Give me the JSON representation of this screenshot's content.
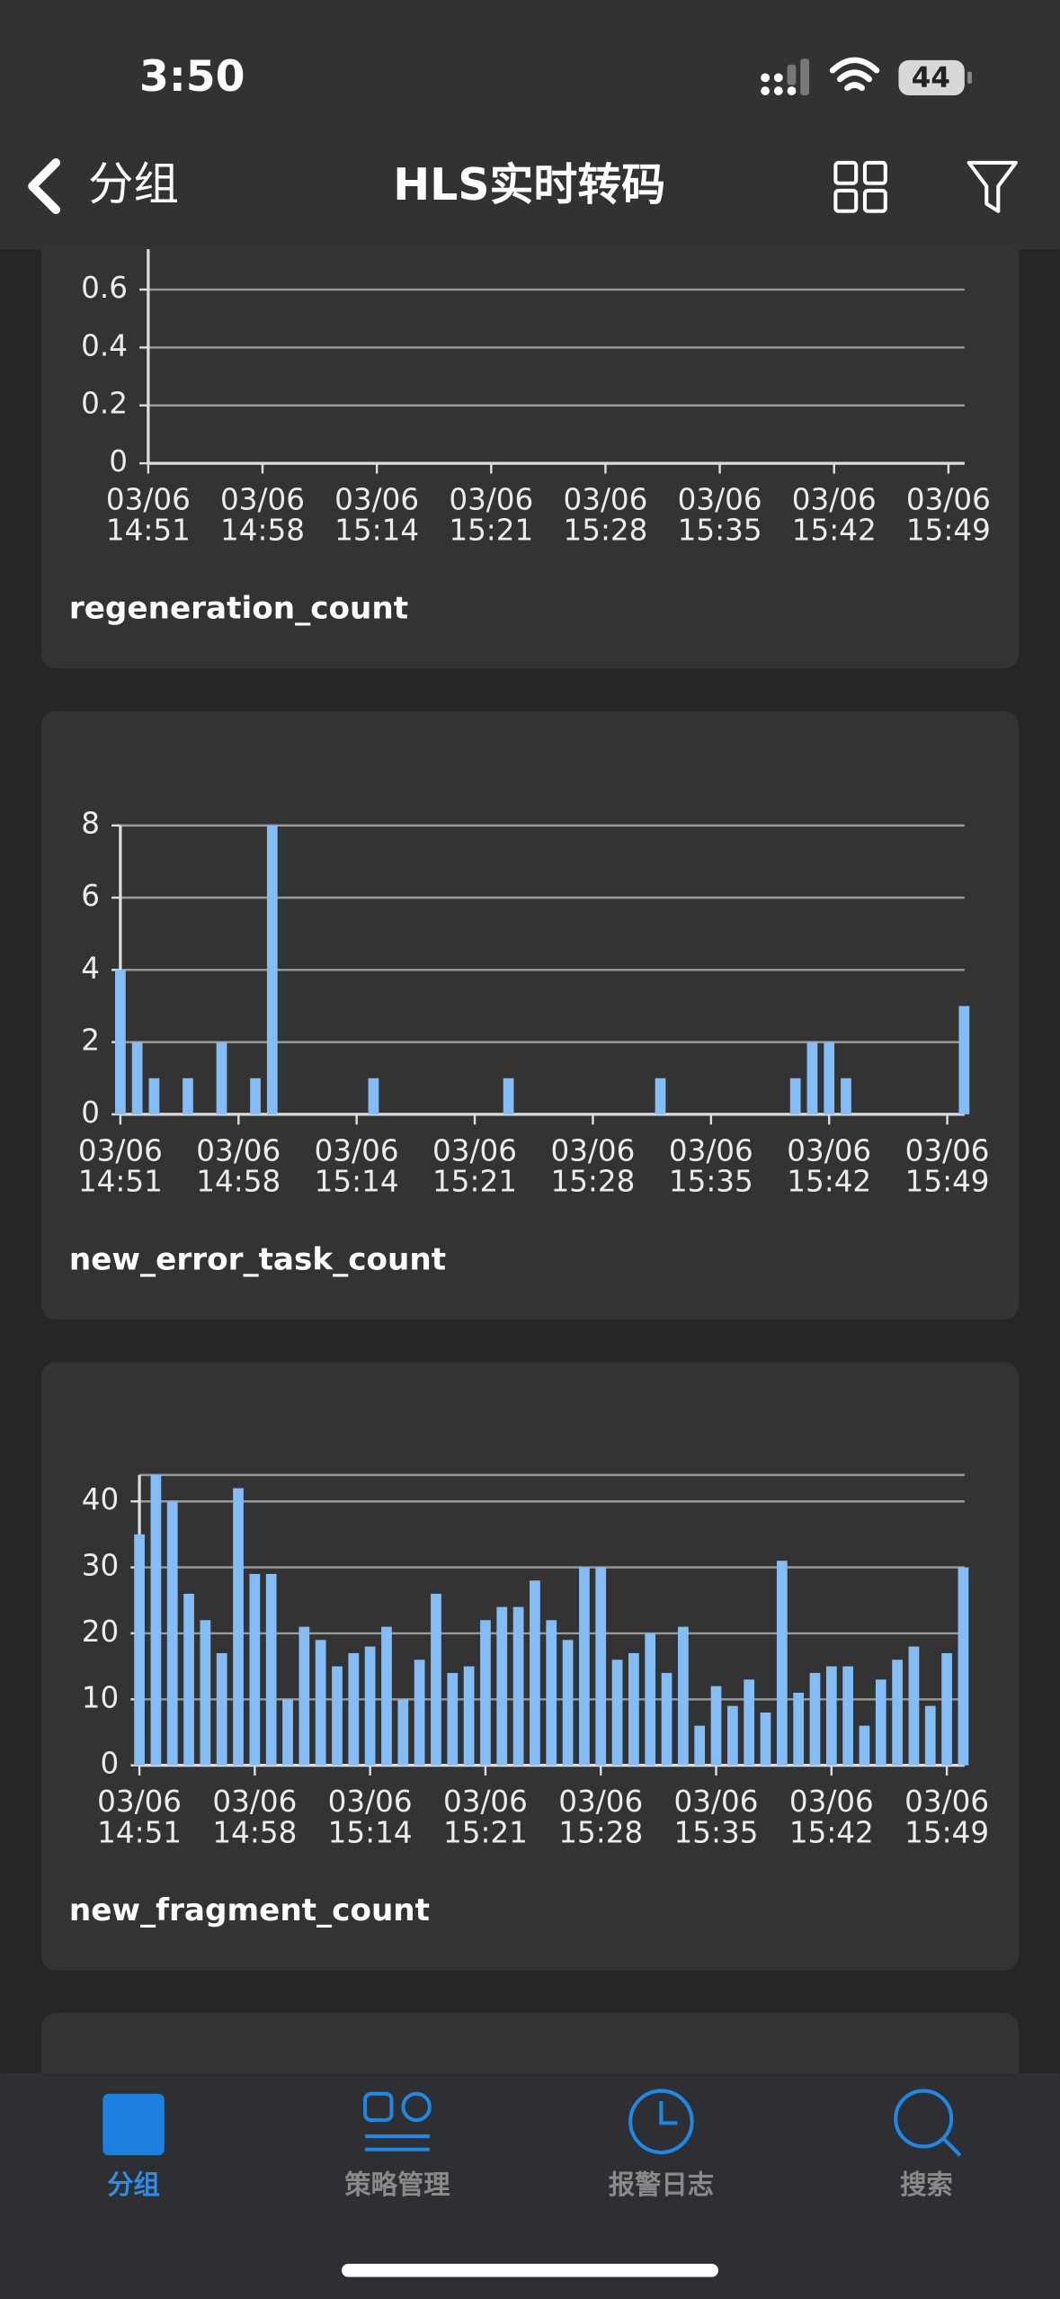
{
  "status": {
    "time": "3:50",
    "battery": "44"
  },
  "nav": {
    "back": "分组",
    "title": "HLS实时转码"
  },
  "chart_data": [
    {
      "type": "bar",
      "title": "regeneration_count",
      "color": "#84bdf5",
      "grid": true,
      "categories": [
        [
          "03/06",
          "14:51"
        ],
        null,
        null,
        null,
        null,
        null,
        null,
        [
          "03/06",
          "14:58"
        ],
        null,
        null,
        null,
        null,
        null,
        null,
        [
          "03/06",
          "15:14"
        ],
        null,
        null,
        null,
        null,
        null,
        null,
        [
          "03/06",
          "15:21"
        ],
        null,
        null,
        null,
        null,
        null,
        null,
        [
          "03/06",
          "15:28"
        ],
        null,
        null,
        null,
        null,
        null,
        null,
        [
          "03/06",
          "15:35"
        ],
        null,
        null,
        null,
        null,
        null,
        null,
        [
          "03/06",
          "15:42"
        ],
        null,
        null,
        null,
        null,
        null,
        null,
        [
          "03/06",
          "15:49"
        ],
        null
      ],
      "ylim": [
        0,
        0.8
      ],
      "yticks": [
        0,
        0.2,
        0.4,
        0.6
      ]
    },
    {
      "type": "bar",
      "title": "new_error_task_count",
      "color": "#84bdf5",
      "grid": true,
      "categories": [
        [
          "03/06",
          "14:51"
        ],
        null,
        null,
        null,
        null,
        null,
        null,
        [
          "03/06",
          "14:58"
        ],
        null,
        null,
        null,
        null,
        null,
        null,
        [
          "03/06",
          "15:14"
        ],
        null,
        null,
        null,
        null,
        null,
        null,
        [
          "03/06",
          "15:21"
        ],
        null,
        null,
        null,
        null,
        null,
        null,
        [
          "03/06",
          "15:28"
        ],
        null,
        null,
        null,
        null,
        null,
        null,
        [
          "03/06",
          "15:35"
        ],
        null,
        null,
        null,
        null,
        null,
        null,
        [
          "03/06",
          "15:42"
        ],
        null,
        null,
        null,
        null,
        null,
        null,
        [
          "03/06",
          "15:49"
        ],
        null
      ],
      "values": [
        4,
        2,
        1,
        0,
        1,
        0,
        2,
        0,
        1,
        8,
        0,
        0,
        0,
        0,
        0,
        1,
        0,
        0,
        0,
        0,
        0,
        0,
        0,
        1,
        0,
        0,
        0,
        0,
        0,
        0,
        0,
        0,
        1,
        0,
        0,
        0,
        0,
        0,
        0,
        0,
        1,
        2,
        2,
        1,
        0,
        0,
        0,
        0,
        0,
        0,
        3
      ],
      "ylim": [
        0,
        8
      ],
      "yticks": [
        0,
        2,
        4,
        6,
        8
      ]
    },
    {
      "type": "bar",
      "title": "new_fragment_count",
      "color": "#84bdf5",
      "grid": true,
      "categories": [
        [
          "03/06",
          "14:51"
        ],
        null,
        null,
        null,
        null,
        null,
        null,
        [
          "03/06",
          "14:58"
        ],
        null,
        null,
        null,
        null,
        null,
        null,
        [
          "03/06",
          "15:14"
        ],
        null,
        null,
        null,
        null,
        null,
        null,
        [
          "03/06",
          "15:21"
        ],
        null,
        null,
        null,
        null,
        null,
        null,
        [
          "03/06",
          "15:28"
        ],
        null,
        null,
        null,
        null,
        null,
        null,
        [
          "03/06",
          "15:35"
        ],
        null,
        null,
        null,
        null,
        null,
        null,
        [
          "03/06",
          "15:42"
        ],
        null,
        null,
        null,
        null,
        null,
        null,
        [
          "03/06",
          "15:49"
        ],
        null
      ],
      "values": [
        35,
        44,
        40,
        26,
        22,
        17,
        42,
        29,
        29,
        10,
        21,
        19,
        15,
        17,
        18,
        21,
        10,
        16,
        26,
        14,
        15,
        22,
        24,
        24,
        28,
        22,
        19,
        30,
        30,
        16,
        17,
        20,
        14,
        21,
        6,
        12,
        9,
        13,
        8,
        31,
        11,
        14,
        15,
        15,
        6,
        13,
        16,
        18,
        9,
        17,
        30
      ],
      "ylim": [
        0,
        44
      ],
      "yticks": [
        0,
        10,
        20,
        30,
        40
      ]
    }
  ],
  "tabs": [
    "分组",
    "策略管理",
    "报警日志",
    "搜索"
  ]
}
